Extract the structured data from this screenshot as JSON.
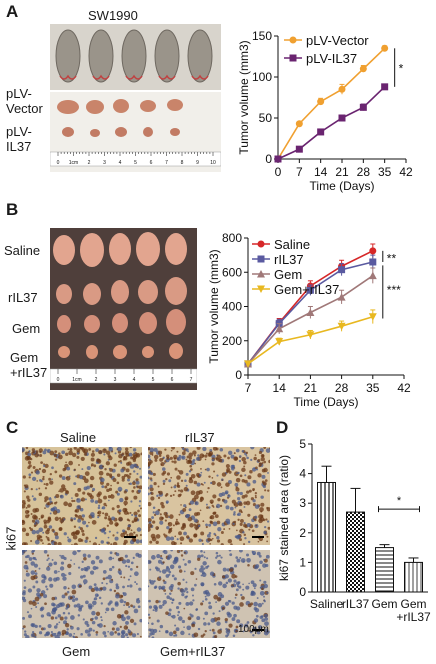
{
  "panels": {
    "A": {
      "letter": "A",
      "cell_line": "SW1990",
      "row_labels": [
        "pLV-\nVector",
        "pLV-\nIL37"
      ],
      "ruler_label": "1cm",
      "ruler_numbers": [
        "0",
        "1cm",
        "2",
        "3",
        "4",
        "5",
        "6",
        "7",
        "8",
        "9",
        "10"
      ]
    },
    "B": {
      "letter": "B",
      "row_labels": [
        "Saline",
        "rIL37",
        "Gem",
        "Gem\n+rIL37"
      ],
      "ruler_numbers": [
        "0",
        "1cm",
        "2",
        "3",
        "4",
        "5",
        "6",
        "7"
      ]
    },
    "C": {
      "letter": "C",
      "side_label": "ki67",
      "image_labels": [
        "Saline",
        "rIL37",
        "Gem",
        "Gem+rIL37"
      ],
      "scale_text": "100μm"
    },
    "D": {
      "letter": "D"
    }
  },
  "colors": {
    "vector": "#f0a030",
    "il37": "#6a2470",
    "saline": "#d62728",
    "ril37": "#5a5aa0",
    "gem": "#a07878",
    "gem_ril37": "#e8b820"
  },
  "chart_data": [
    {
      "id": "A",
      "type": "line",
      "title": "",
      "xlabel": "Time (Days)",
      "ylabel": "Tumor volume (mm3)",
      "x": [
        0,
        7,
        14,
        21,
        28,
        35
      ],
      "xticks": [
        0,
        7,
        14,
        21,
        28,
        35,
        42
      ],
      "yticks": [
        0,
        50,
        100,
        150
      ],
      "xlim": [
        0,
        42
      ],
      "ylim": [
        0,
        150
      ],
      "series": [
        {
          "name": "pLV-Vector",
          "values": [
            0,
            43,
            70,
            85,
            110,
            135
          ],
          "err": [
            0,
            2,
            4,
            6,
            4,
            3
          ],
          "marker": "circle"
        },
        {
          "name": "pLV-IL37",
          "values": [
            0,
            12,
            33,
            50,
            63,
            88
          ],
          "err": [
            0,
            2,
            2,
            3,
            4,
            3
          ],
          "marker": "square"
        }
      ],
      "significance": [
        {
          "text": "*"
        }
      ],
      "legend": "top-left"
    },
    {
      "id": "B",
      "type": "line",
      "title": "",
      "xlabel": "Time (Days)",
      "ylabel": "Tumor volume (mm3)",
      "x": [
        7,
        14,
        21,
        28,
        35
      ],
      "xticks": [
        7,
        14,
        21,
        28,
        35,
        42
      ],
      "yticks": [
        0,
        200,
        400,
        600,
        800
      ],
      "xlim": [
        7,
        42
      ],
      "ylim": [
        0,
        800
      ],
      "series": [
        {
          "name": "Saline",
          "values": [
            65,
            305,
            520,
            635,
            725
          ],
          "err": [
            5,
            25,
            30,
            35,
            40
          ],
          "marker": "circle"
        },
        {
          "name": "rIL37",
          "values": [
            65,
            300,
            495,
            615,
            660
          ],
          "err": [
            5,
            25,
            30,
            35,
            40
          ],
          "marker": "square"
        },
        {
          "name": "Gem",
          "values": [
            65,
            270,
            365,
            455,
            580
          ],
          "err": [
            5,
            30,
            35,
            40,
            45
          ],
          "marker": "triangle-up"
        },
        {
          "name": "Gem+rIL37",
          "values": [
            65,
            195,
            235,
            285,
            340
          ],
          "err": [
            5,
            20,
            25,
            30,
            40
          ],
          "marker": "triangle-down"
        }
      ],
      "significance": [
        {
          "text": "**"
        },
        {
          "text": "***"
        }
      ],
      "legend": "top-left"
    },
    {
      "id": "D",
      "type": "bar",
      "title": "",
      "xlabel": "",
      "ylabel": "ki67 stained area (ratio)",
      "categories": [
        "Saline",
        "rIL37",
        "Gem",
        "Gem\n+rIL37"
      ],
      "values": [
        3.7,
        2.7,
        1.5,
        1.0
      ],
      "err": [
        0.55,
        0.8,
        0.1,
        0.15
      ],
      "yticks": [
        0,
        1,
        2,
        3,
        4,
        5
      ],
      "ylim": [
        0,
        5
      ],
      "patterns": [
        "vertical",
        "checker",
        "horizontal",
        "vertical-fine"
      ],
      "significance": [
        {
          "text": "*"
        }
      ]
    }
  ]
}
